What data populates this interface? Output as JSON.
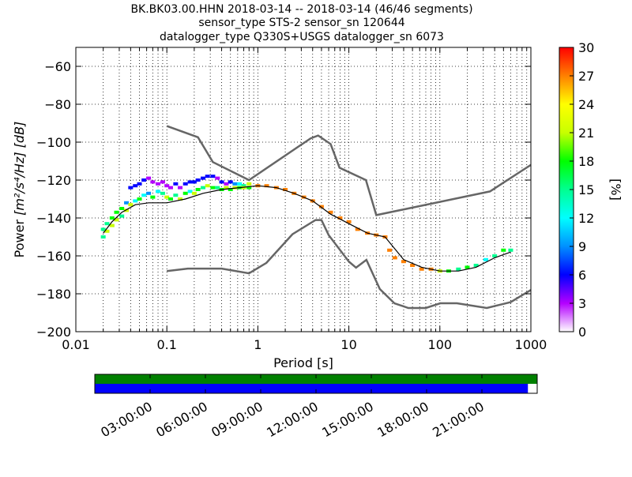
{
  "chart_data": {
    "type": "heatmap",
    "title_lines": [
      "BK.BK03.00.HHN   2018-03-14 -- 2018-03-14  (46/46 segments)",
      "sensor_type STS-2 sensor_sn 120644",
      "datalogger_type Q330S+USGS datalogger_sn 6073"
    ],
    "xlabel": "Period [s]",
    "ylabel_main": "Power ",
    "ylabel_units": "[m²/s⁴/Hz] [dB]",
    "xscale": "log",
    "xlim": [
      0.01,
      1000
    ],
    "ylim": [
      -200,
      -50
    ],
    "x_ticks": [
      0.01,
      0.1,
      1,
      10,
      100,
      1000
    ],
    "x_tick_labels": [
      "0.01",
      "0.1",
      "1",
      "10",
      "100",
      "1000"
    ],
    "y_ticks": [
      -200,
      -180,
      -160,
      -140,
      -120,
      -100,
      -80,
      -60
    ],
    "y_tick_labels": [
      "−200",
      "−180",
      "−160",
      "−140",
      "−120",
      "−100",
      "−80",
      "−60"
    ],
    "grid": "dotted",
    "colorbar": {
      "label": "[%]",
      "range": [
        0,
        30
      ],
      "ticks": [
        0,
        3,
        6,
        9,
        12,
        15,
        18,
        21,
        24,
        27,
        30
      ],
      "tick_labels": [
        "0",
        "3",
        "6",
        "9",
        "12",
        "15",
        "18",
        "21",
        "24",
        "27",
        "30"
      ],
      "colormap": "pqlx"
    },
    "pdf_cells": [
      [
        0.02,
        -146,
        14
      ],
      [
        0.02,
        -150,
        14
      ],
      [
        0.022,
        -143,
        14
      ],
      [
        0.022,
        -147,
        20
      ],
      [
        0.025,
        -140,
        17
      ],
      [
        0.025,
        -144,
        20
      ],
      [
        0.028,
        -137,
        17
      ],
      [
        0.028,
        -141,
        20
      ],
      [
        0.032,
        -135,
        17
      ],
      [
        0.032,
        -139,
        14
      ],
      [
        0.036,
        -132,
        8
      ],
      [
        0.036,
        -136,
        20
      ],
      [
        0.04,
        -124,
        5
      ],
      [
        0.04,
        -133,
        20
      ],
      [
        0.045,
        -123,
        5
      ],
      [
        0.045,
        -131,
        11
      ],
      [
        0.05,
        -122,
        5
      ],
      [
        0.05,
        -130,
        17
      ],
      [
        0.056,
        -120,
        5
      ],
      [
        0.056,
        -128,
        11
      ],
      [
        0.063,
        -119,
        4
      ],
      [
        0.063,
        -127,
        8
      ],
      [
        0.07,
        -121,
        4
      ],
      [
        0.07,
        -129,
        17
      ],
      [
        0.08,
        -122,
        4
      ],
      [
        0.08,
        -126,
        11
      ],
      [
        0.09,
        -121,
        4
      ],
      [
        0.09,
        -127,
        14
      ],
      [
        0.1,
        -123,
        4
      ],
      [
        0.1,
        -129,
        20
      ],
      [
        0.11,
        -124,
        4
      ],
      [
        0.11,
        -130,
        17
      ],
      [
        0.125,
        -122,
        5
      ],
      [
        0.125,
        -128,
        14
      ],
      [
        0.14,
        -124,
        4
      ],
      [
        0.14,
        -130,
        20
      ],
      [
        0.16,
        -122,
        5
      ],
      [
        0.16,
        -127,
        17
      ],
      [
        0.18,
        -121,
        5
      ],
      [
        0.18,
        -126,
        11
      ],
      [
        0.2,
        -121,
        5
      ],
      [
        0.2,
        -127,
        20
      ],
      [
        0.22,
        -120,
        6
      ],
      [
        0.22,
        -125,
        17
      ],
      [
        0.25,
        -119,
        5
      ],
      [
        0.25,
        -124,
        14
      ],
      [
        0.28,
        -118,
        5
      ],
      [
        0.28,
        -123,
        20
      ],
      [
        0.32,
        -118,
        5
      ],
      [
        0.32,
        -124,
        17
      ],
      [
        0.36,
        -119,
        4
      ],
      [
        0.36,
        -124,
        14
      ],
      [
        0.4,
        -121,
        5
      ],
      [
        0.4,
        -125,
        17
      ],
      [
        0.45,
        -122,
        4
      ],
      [
        0.45,
        -124,
        20
      ],
      [
        0.5,
        -121,
        5
      ],
      [
        0.5,
        -125,
        17
      ],
      [
        0.56,
        -122,
        8
      ],
      [
        0.56,
        -124,
        20
      ],
      [
        0.63,
        -122,
        11
      ],
      [
        0.63,
        -124,
        17
      ],
      [
        0.7,
        -123,
        14
      ],
      [
        0.7,
        -124,
        20
      ],
      [
        0.8,
        -122,
        20
      ],
      [
        0.8,
        -124,
        17
      ],
      [
        1,
        -123,
        26
      ],
      [
        1.25,
        -123,
        28
      ],
      [
        1.6,
        -124,
        27
      ],
      [
        2,
        -125,
        26
      ],
      [
        2.5,
        -127,
        26
      ],
      [
        3.2,
        -129,
        27
      ],
      [
        4,
        -131,
        26
      ],
      [
        5,
        -134,
        26
      ],
      [
        6.3,
        -137,
        27
      ],
      [
        8,
        -140,
        26
      ],
      [
        10,
        -142,
        26
      ],
      [
        12.5,
        -146,
        26
      ],
      [
        16,
        -148,
        27
      ],
      [
        20,
        -149,
        26
      ],
      [
        25,
        -150,
        26
      ],
      [
        28,
        -157,
        26
      ],
      [
        32,
        -161,
        26
      ],
      [
        40,
        -163,
        27
      ],
      [
        50,
        -165,
        26
      ],
      [
        63,
        -167,
        26
      ],
      [
        80,
        -167,
        27
      ],
      [
        100,
        -168,
        20
      ],
      [
        125,
        -168,
        17
      ],
      [
        160,
        -167,
        14
      ],
      [
        200,
        -166,
        17
      ],
      [
        250,
        -165,
        14
      ],
      [
        320,
        -162,
        11
      ],
      [
        400,
        -160,
        14
      ],
      [
        500,
        -157,
        17
      ],
      [
        600,
        -157,
        14
      ]
    ],
    "mean_curve": [
      [
        0.02,
        -148
      ],
      [
        0.025,
        -142
      ],
      [
        0.032,
        -137
      ],
      [
        0.045,
        -133
      ],
      [
        0.063,
        -132
      ],
      [
        0.1,
        -132
      ],
      [
        0.16,
        -130
      ],
      [
        0.25,
        -127
      ],
      [
        0.4,
        -125
      ],
      [
        0.63,
        -124
      ],
      [
        1,
        -123
      ],
      [
        1.6,
        -124
      ],
      [
        2.5,
        -127
      ],
      [
        4,
        -131
      ],
      [
        6.3,
        -138
      ],
      [
        10,
        -143
      ],
      [
        16,
        -148
      ],
      [
        25,
        -150
      ],
      [
        40,
        -162
      ],
      [
        63,
        -166
      ],
      [
        100,
        -168
      ],
      [
        160,
        -168
      ],
      [
        250,
        -166
      ],
      [
        400,
        -161
      ],
      [
        600,
        -158
      ]
    ],
    "noise_models": [
      {
        "points": [
          [
            0.1,
            -91.5
          ],
          [
            0.22,
            -97.4
          ],
          [
            0.32,
            -110.5
          ],
          [
            0.8,
            -120
          ],
          [
            3.8,
            -98
          ],
          [
            4.6,
            -96.5
          ],
          [
            6.3,
            -101
          ],
          [
            7.9,
            -113.5
          ],
          [
            15.4,
            -120
          ],
          [
            20,
            -138.5
          ],
          [
            354.8,
            -126
          ],
          [
            1000,
            -112
          ]
        ]
      },
      {
        "points": [
          [
            0.1,
            -168
          ],
          [
            0.17,
            -166.7
          ],
          [
            0.4,
            -166.7
          ],
          [
            0.8,
            -169.2
          ],
          [
            1.24,
            -163.7
          ],
          [
            2.4,
            -148.6
          ],
          [
            4.3,
            -141.1
          ],
          [
            5,
            -141.1
          ],
          [
            6,
            -149
          ],
          [
            10,
            -163
          ],
          [
            12,
            -166.2
          ],
          [
            15.6,
            -162.1
          ],
          [
            21.9,
            -177.5
          ],
          [
            31.6,
            -185
          ],
          [
            45,
            -187.5
          ],
          [
            70,
            -187.5
          ],
          [
            101,
            -185
          ],
          [
            154,
            -185
          ],
          [
            328,
            -187.5
          ],
          [
            600,
            -184.4
          ],
          [
            1000,
            -178
          ]
        ]
      }
    ],
    "timeline": {
      "tick_labels": [
        "03:00:00",
        "06:00:00",
        "09:00:00",
        "12:00:00",
        "15:00:00",
        "18:00:00",
        "21:00:00"
      ],
      "tick_hours": [
        3,
        6,
        9,
        12,
        15,
        18,
        21
      ],
      "span_hours": 24,
      "rows": [
        {
          "color": "#008000",
          "coverage_fraction": 1.0
        },
        {
          "color": "#0000ff",
          "coverage_fraction": 0.979
        }
      ]
    }
  }
}
